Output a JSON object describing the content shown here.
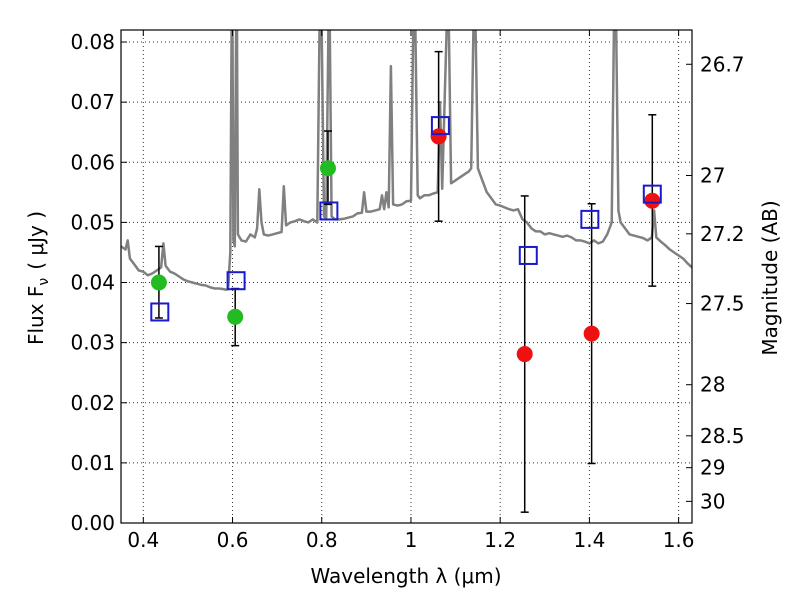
{
  "chart_data": {
    "type": "scatter",
    "xlabel": "Wavelength  λ (μm)",
    "ylabel": "Flux  F",
    "ylabel_sub": "ν",
    "ylabel_unit": "( μJy )",
    "ylabel_right": "Magnitude (AB)",
    "xlim": [
      0.35,
      1.63
    ],
    "ylim": [
      0.0,
      0.082
    ],
    "grid": true,
    "x_ticks": [
      0.4,
      0.6,
      0.8,
      1.0,
      1.2,
      1.4,
      1.6
    ],
    "x_tick_labels": [
      "0.4",
      "0.6",
      "0.8",
      "1",
      "1.2",
      "1.4",
      "1.6"
    ],
    "y_ticks": [
      0.0,
      0.01,
      0.02,
      0.03,
      0.04,
      0.05,
      0.06,
      0.07,
      0.08
    ],
    "y_tick_labels": [
      "0.00",
      "0.01",
      "0.02",
      "0.03",
      "0.04",
      "0.05",
      "0.06",
      "0.07",
      "0.08"
    ],
    "right_ticks": [
      {
        "label": "26.7",
        "flux": 0.0763
      },
      {
        "label": "27",
        "flux": 0.0578
      },
      {
        "label": "27.2",
        "flux": 0.0481
      },
      {
        "label": "27.5",
        "flux": 0.0365
      },
      {
        "label": "28",
        "flux": 0.023
      },
      {
        "label": "28.5",
        "flux": 0.0145
      },
      {
        "label": "29",
        "flux": 0.0092
      },
      {
        "label": "30",
        "flux": 0.0036
      }
    ],
    "colors": {
      "green": "#22bb22",
      "red": "#ee1111",
      "model_box": "#1a1acc",
      "spectrum": "#808080"
    },
    "series": [
      {
        "marker": "circle",
        "color": "green",
        "points": [
          {
            "x": 0.435,
            "y": 0.04,
            "err_low": 0.0341,
            "err_high": 0.046
          },
          {
            "x": 0.606,
            "y": 0.0343,
            "err_low": 0.0295,
            "err_high": 0.039
          },
          {
            "x": 0.814,
            "y": 0.059,
            "err_low": 0.053,
            "err_high": 0.0652
          }
        ]
      },
      {
        "marker": "circle",
        "color": "red",
        "points": [
          {
            "x": 1.062,
            "y": 0.0643,
            "err_low": 0.0502,
            "err_high": 0.0784
          },
          {
            "x": 1.255,
            "y": 0.0281,
            "err_low": 0.0018,
            "err_high": 0.0544
          },
          {
            "x": 1.405,
            "y": 0.0315,
            "err_low": 0.0099,
            "err_high": 0.0531
          },
          {
            "x": 1.541,
            "y": 0.0536,
            "err_low": 0.0394,
            "err_high": 0.0679
          }
        ]
      },
      {
        "marker": "square",
        "color": "model_box",
        "points": [
          {
            "x": 0.437,
            "y": 0.0351
          },
          {
            "x": 0.608,
            "y": 0.0403
          },
          {
            "x": 0.816,
            "y": 0.0519
          },
          {
            "x": 1.066,
            "y": 0.0661
          },
          {
            "x": 1.263,
            "y": 0.0445
          },
          {
            "x": 1.401,
            "y": 0.0505
          },
          {
            "x": 1.541,
            "y": 0.0547
          }
        ]
      }
    ],
    "spectrum": {
      "color": "spectrum",
      "points": [
        [
          0.35,
          0.046
        ],
        [
          0.36,
          0.0455
        ],
        [
          0.365,
          0.047
        ],
        [
          0.37,
          0.044
        ],
        [
          0.38,
          0.043
        ],
        [
          0.39,
          0.042
        ],
        [
          0.4,
          0.0418
        ],
        [
          0.41,
          0.0412
        ],
        [
          0.42,
          0.0415
        ],
        [
          0.43,
          0.042
        ],
        [
          0.44,
          0.0425
        ],
        [
          0.445,
          0.0465
        ],
        [
          0.45,
          0.0428
        ],
        [
          0.46,
          0.0418
        ],
        [
          0.47,
          0.0415
        ],
        [
          0.48,
          0.041
        ],
        [
          0.49,
          0.0405
        ],
        [
          0.5,
          0.0402
        ],
        [
          0.51,
          0.04
        ],
        [
          0.52,
          0.0398
        ],
        [
          0.53,
          0.0396
        ],
        [
          0.54,
          0.0395
        ],
        [
          0.55,
          0.0392
        ],
        [
          0.56,
          0.039
        ],
        [
          0.57,
          0.039
        ],
        [
          0.58,
          0.0389
        ],
        [
          0.585,
          0.0388
        ],
        [
          0.59,
          0.0389
        ],
        [
          0.595,
          0.045
        ],
        [
          0.598,
          0.082
        ],
        [
          0.6,
          0.082
        ],
        [
          0.602,
          0.047
        ],
        [
          0.605,
          0.046
        ],
        [
          0.608,
          0.082
        ],
        [
          0.61,
          0.082
        ],
        [
          0.612,
          0.048
        ],
        [
          0.62,
          0.047
        ],
        [
          0.63,
          0.0468
        ],
        [
          0.64,
          0.048
        ],
        [
          0.65,
          0.0475
        ],
        [
          0.655,
          0.049
        ],
        [
          0.66,
          0.0555
        ],
        [
          0.665,
          0.05
        ],
        [
          0.67,
          0.048
        ],
        [
          0.68,
          0.0478
        ],
        [
          0.69,
          0.048
        ],
        [
          0.7,
          0.0482
        ],
        [
          0.71,
          0.0484
        ],
        [
          0.715,
          0.056
        ],
        [
          0.72,
          0.0495
        ],
        [
          0.73,
          0.05
        ],
        [
          0.74,
          0.0502
        ],
        [
          0.75,
          0.0505
        ],
        [
          0.76,
          0.0502
        ],
        [
          0.77,
          0.05
        ],
        [
          0.78,
          0.0505
        ],
        [
          0.79,
          0.05
        ],
        [
          0.795,
          0.082
        ],
        [
          0.8,
          0.082
        ],
        [
          0.805,
          0.051
        ],
        [
          0.81,
          0.0505
        ],
        [
          0.815,
          0.082
        ],
        [
          0.818,
          0.082
        ],
        [
          0.822,
          0.051
        ],
        [
          0.83,
          0.0505
        ],
        [
          0.84,
          0.0505
        ],
        [
          0.85,
          0.0506
        ],
        [
          0.86,
          0.0508
        ],
        [
          0.87,
          0.051
        ],
        [
          0.88,
          0.0515
        ],
        [
          0.89,
          0.0516
        ],
        [
          0.895,
          0.055
        ],
        [
          0.9,
          0.0518
        ],
        [
          0.91,
          0.0518
        ],
        [
          0.92,
          0.052
        ],
        [
          0.93,
          0.0522
        ],
        [
          0.935,
          0.0545
        ],
        [
          0.94,
          0.0522
        ],
        [
          0.945,
          0.055
        ],
        [
          0.95,
          0.0525
        ],
        [
          0.955,
          0.076
        ],
        [
          0.96,
          0.053
        ],
        [
          0.97,
          0.0528
        ],
        [
          0.98,
          0.053
        ],
        [
          0.99,
          0.0535
        ],
        [
          1.0,
          0.0536
        ],
        [
          1.005,
          0.082
        ],
        [
          1.01,
          0.082
        ],
        [
          1.015,
          0.0545
        ],
        [
          1.02,
          0.054
        ],
        [
          1.03,
          0.0545
        ],
        [
          1.04,
          0.0545
        ],
        [
          1.05,
          0.0548
        ],
        [
          1.06,
          0.055
        ],
        [
          1.065,
          0.07
        ],
        [
          1.07,
          0.0556
        ],
        [
          1.08,
          0.082
        ],
        [
          1.085,
          0.082
        ],
        [
          1.09,
          0.0565
        ],
        [
          1.1,
          0.057
        ],
        [
          1.11,
          0.0575
        ],
        [
          1.12,
          0.058
        ],
        [
          1.13,
          0.0585
        ],
        [
          1.135,
          0.059
        ],
        [
          1.14,
          0.082
        ],
        [
          1.145,
          0.082
        ],
        [
          1.15,
          0.059
        ],
        [
          1.16,
          0.057
        ],
        [
          1.17,
          0.055
        ],
        [
          1.18,
          0.054
        ],
        [
          1.19,
          0.053
        ],
        [
          1.2,
          0.0528
        ],
        [
          1.21,
          0.0525
        ],
        [
          1.22,
          0.0522
        ],
        [
          1.23,
          0.052
        ],
        [
          1.24,
          0.0522
        ],
        [
          1.25,
          0.0505
        ],
        [
          1.26,
          0.05
        ],
        [
          1.27,
          0.049
        ],
        [
          1.28,
          0.0485
        ],
        [
          1.29,
          0.0485
        ],
        [
          1.3,
          0.048
        ],
        [
          1.31,
          0.0482
        ],
        [
          1.32,
          0.048
        ],
        [
          1.33,
          0.0478
        ],
        [
          1.34,
          0.0476
        ],
        [
          1.35,
          0.0478
        ],
        [
          1.36,
          0.0475
        ],
        [
          1.37,
          0.047
        ],
        [
          1.38,
          0.047
        ],
        [
          1.39,
          0.0468
        ],
        [
          1.4,
          0.0465
        ],
        [
          1.41,
          0.047
        ],
        [
          1.42,
          0.0465
        ],
        [
          1.43,
          0.0468
        ],
        [
          1.44,
          0.048
        ],
        [
          1.45,
          0.05
        ],
        [
          1.455,
          0.082
        ],
        [
          1.46,
          0.082
        ],
        [
          1.465,
          0.052
        ],
        [
          1.47,
          0.05
        ],
        [
          1.48,
          0.049
        ],
        [
          1.49,
          0.048
        ],
        [
          1.5,
          0.0478
        ],
        [
          1.51,
          0.0476
        ],
        [
          1.52,
          0.0474
        ],
        [
          1.53,
          0.047
        ],
        [
          1.54,
          0.0475
        ],
        [
          1.545,
          0.052
        ],
        [
          1.55,
          0.0475
        ],
        [
          1.56,
          0.0468
        ],
        [
          1.57,
          0.0462
        ],
        [
          1.58,
          0.0455
        ],
        [
          1.59,
          0.045
        ],
        [
          1.6,
          0.0445
        ],
        [
          1.61,
          0.044
        ],
        [
          1.62,
          0.0432
        ],
        [
          1.63,
          0.0425
        ]
      ]
    }
  }
}
